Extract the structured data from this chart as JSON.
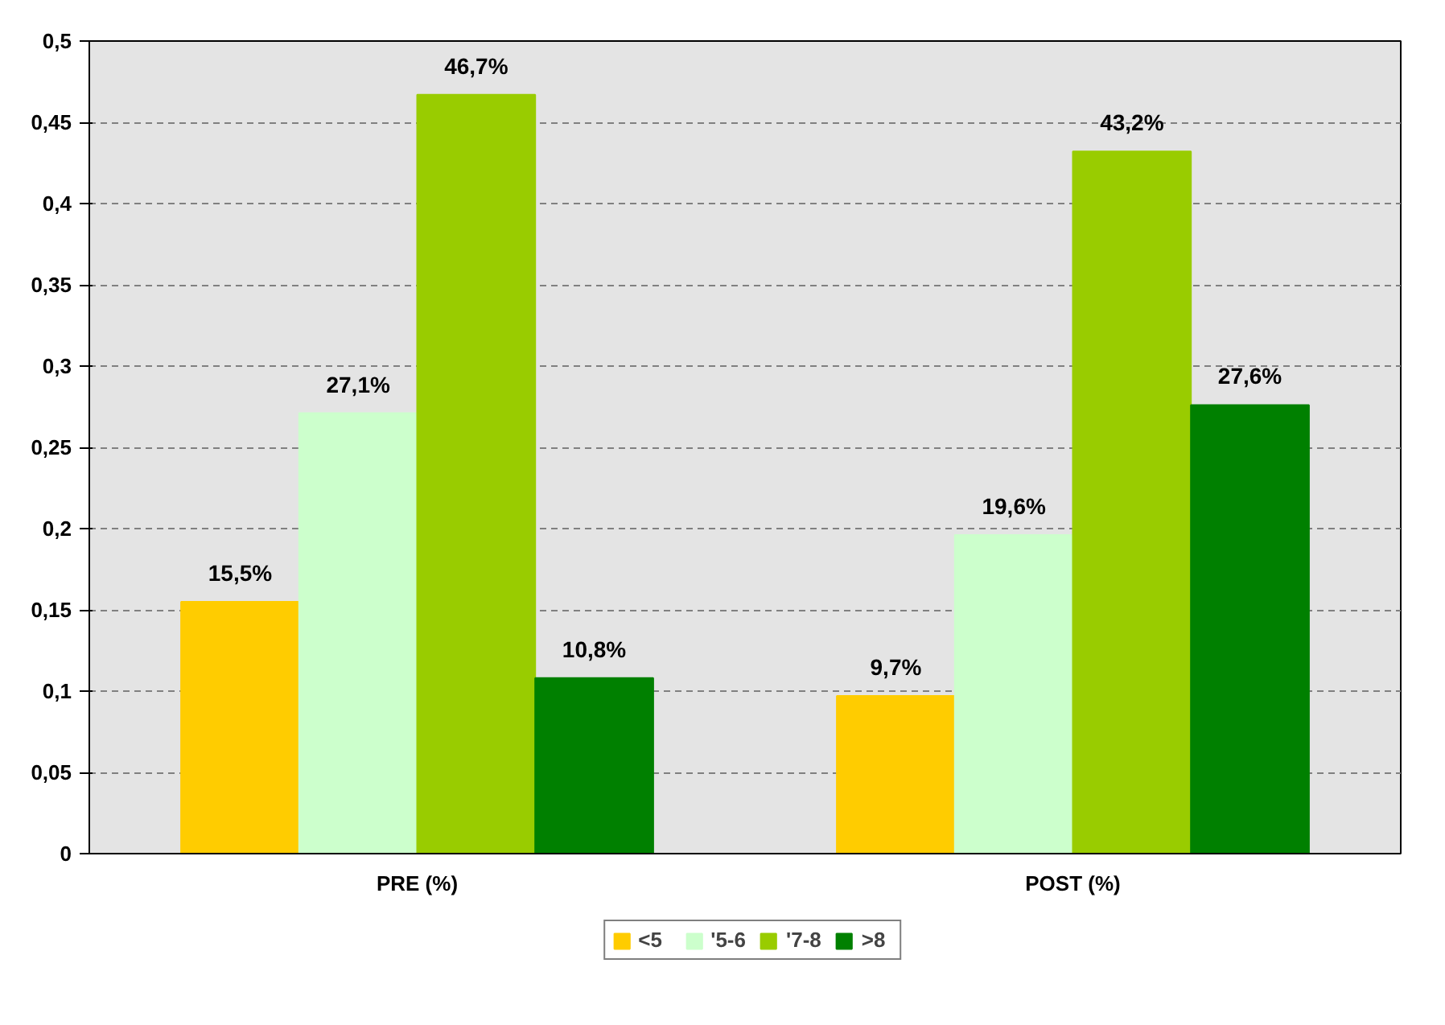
{
  "chart_data": {
    "type": "bar",
    "categories": [
      "PRE (%)",
      "POST (%)"
    ],
    "series": [
      {
        "name": "<5",
        "color": "#ffcc00",
        "values": [
          0.155,
          0.097
        ],
        "value_labels": [
          "15,5%",
          "9,7%"
        ]
      },
      {
        "name": "'5-6",
        "color": "#ccffcc",
        "values": [
          0.271,
          0.196
        ],
        "value_labels": [
          "27,1%",
          "19,6%"
        ]
      },
      {
        "name": "'7-8",
        "color": "#99cc00",
        "values": [
          0.467,
          0.432
        ],
        "value_labels": [
          "46,7%",
          "43,2%"
        ]
      },
      {
        "name": ">8",
        "color": "#008000",
        "values": [
          0.108,
          0.276
        ],
        "value_labels": [
          "10,8%",
          "27,6%"
        ]
      }
    ],
    "ylim": [
      0,
      0.5
    ],
    "yticks": [
      {
        "value": 0,
        "label": "0"
      },
      {
        "value": 0.05,
        "label": "0,05"
      },
      {
        "value": 0.1,
        "label": "0,1"
      },
      {
        "value": 0.15,
        "label": "0,15"
      },
      {
        "value": 0.2,
        "label": "0,2"
      },
      {
        "value": 0.25,
        "label": "0,25"
      },
      {
        "value": 0.3,
        "label": "0,3"
      },
      {
        "value": 0.35,
        "label": "0,35"
      },
      {
        "value": 0.4,
        "label": "0,4"
      },
      {
        "value": 0.45,
        "label": "0,45"
      },
      {
        "value": 0.5,
        "label": "0,5"
      }
    ],
    "grid": "y",
    "legend": "bottom"
  }
}
